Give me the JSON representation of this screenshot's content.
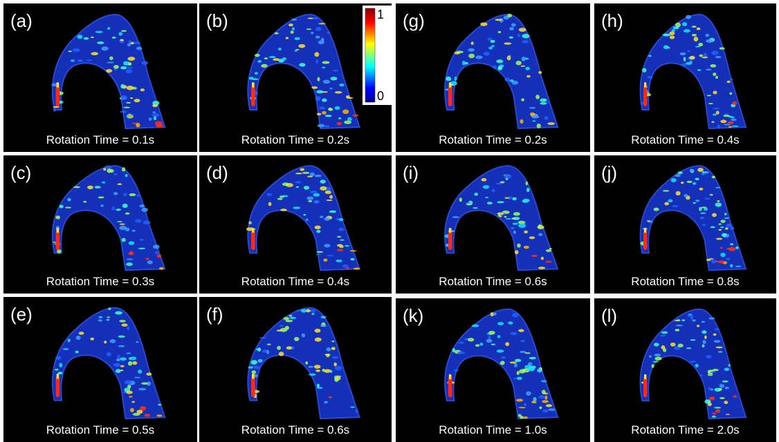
{
  "colorbar": {
    "max_label": "1",
    "min_label": "0"
  },
  "panels": [
    {
      "label": "(a)",
      "caption": "Rotation Time = 0.1s"
    },
    {
      "label": "(b)",
      "caption": "Rotation Time = 0.2s"
    },
    {
      "label": "(c)",
      "caption": "Rotation Time = 0.3s"
    },
    {
      "label": "(d)",
      "caption": "Rotation Time = 0.4s"
    },
    {
      "label": "(e)",
      "caption": "Rotation Time = 0.5s"
    },
    {
      "label": "(f)",
      "caption": "Rotation Time = 0.6s"
    },
    {
      "label": "(g)",
      "caption": "Rotation Time = 0.2s"
    },
    {
      "label": "(h)",
      "caption": "Rotation Time = 0.4s"
    },
    {
      "label": "(i)",
      "caption": "Rotation Time = 0.6s"
    },
    {
      "label": "(j)",
      "caption": "Rotation Time = 0.8s"
    },
    {
      "label": "(k)",
      "caption": "Rotation Time = 1.0s"
    },
    {
      "label": "(l)",
      "caption": "Rotation Time = 2.0s"
    }
  ]
}
